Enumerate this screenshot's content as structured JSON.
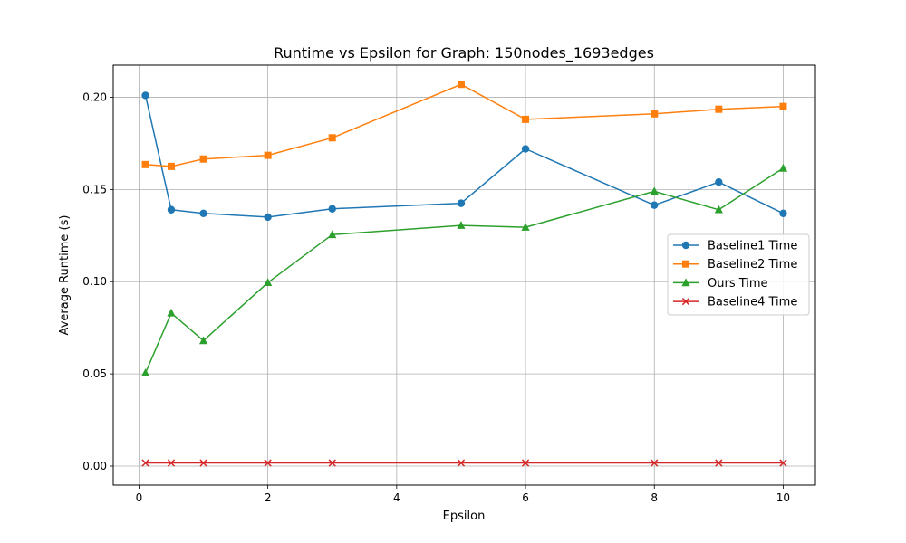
{
  "chart_data": {
    "type": "line",
    "title": "Runtime vs Epsilon for Graph: 150nodes_1693edges",
    "xlabel": "Epsilon",
    "ylabel": "Average Runtime (s)",
    "xlim": [
      -0.4,
      10.5
    ],
    "ylim": [
      -0.0103,
      0.2174
    ],
    "xticks": [
      0,
      2,
      4,
      6,
      8,
      10
    ],
    "xtick_labels": [
      "0",
      "2",
      "4",
      "6",
      "8",
      "10"
    ],
    "yticks": [
      0.0,
      0.05,
      0.1,
      0.15,
      0.2
    ],
    "ytick_labels": [
      "0.00",
      "0.05",
      "0.10",
      "0.15",
      "0.20"
    ],
    "grid": true,
    "legend_position": "center-right",
    "x": [
      0.1,
      0.5,
      1,
      2,
      3,
      5,
      6,
      8,
      9,
      10
    ],
    "series": [
      {
        "name": "Baseline1 Time",
        "color": "#1f77b4",
        "marker": "circle",
        "values": [
          0.201,
          0.139,
          0.137,
          0.135,
          0.1395,
          0.1425,
          0.172,
          0.1415,
          0.154,
          0.137
        ]
      },
      {
        "name": "Baseline2 Time",
        "color": "#ff7f0e",
        "marker": "square",
        "values": [
          0.1635,
          0.1625,
          0.1665,
          0.1685,
          0.178,
          0.207,
          0.188,
          0.191,
          0.1935,
          0.195
        ]
      },
      {
        "name": "Ours Time",
        "color": "#2ca02c",
        "marker": "triangle",
        "values": [
          0.0505,
          0.083,
          0.068,
          0.0995,
          0.1255,
          0.1305,
          0.1295,
          0.149,
          0.139,
          0.1615
        ]
      },
      {
        "name": "Baseline4 Time",
        "color": "#d62728",
        "marker": "x",
        "values": [
          0.0017,
          0.0017,
          0.0017,
          0.0017,
          0.0017,
          0.0017,
          0.0017,
          0.0017,
          0.0017,
          0.0017
        ]
      }
    ]
  }
}
